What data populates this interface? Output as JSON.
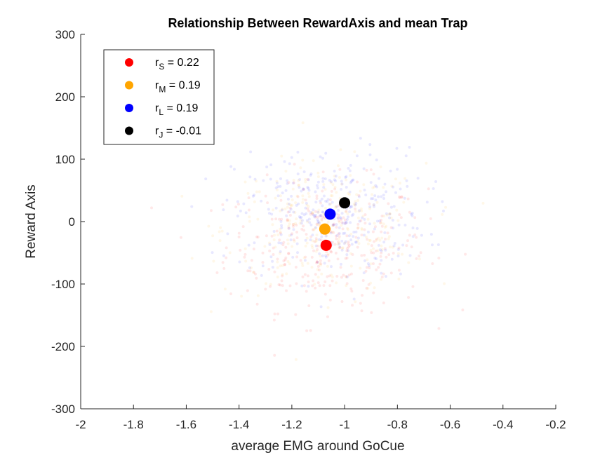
{
  "chart_data": {
    "type": "scatter",
    "title": "Relationship Between RewardAxis and mean Trap",
    "xlabel": "average EMG around GoCue",
    "ylabel": "Reward Axis",
    "xlim": [
      -2,
      -0.2
    ],
    "ylim": [
      -300,
      300
    ],
    "xticks": [
      -2,
      -1.8,
      -1.6,
      -1.4,
      -1.2,
      -1,
      -0.8,
      -0.6,
      -0.4,
      -0.2
    ],
    "yticks": [
      -300,
      -200,
      -100,
      0,
      100,
      200,
      300
    ],
    "xtick_labels": [
      "-2",
      "-1.8",
      "-1.6",
      "-1.4",
      "-1.2",
      "-1",
      "-0.8",
      "-0.6",
      "-0.4",
      "-0.2"
    ],
    "ytick_labels": [
      "-300",
      "-200",
      "-100",
      "0",
      "100",
      "200",
      "300"
    ],
    "grid": false,
    "legend_position": "top-left",
    "series": [
      {
        "key": "S",
        "legend_r": "r",
        "legend_sub": "S",
        "legend_value": " = 0.22",
        "color": "#ff0000",
        "mean": {
          "x": -1.07,
          "y": -38
        },
        "cloud": {
          "n": 320,
          "sx": 0.19,
          "sy": 52,
          "cx": -1.07,
          "cy": -38
        }
      },
      {
        "key": "M",
        "legend_r": "r",
        "legend_sub": "M",
        "legend_value": " = 0.19",
        "color": "#ffa500",
        "mean": {
          "x": -1.075,
          "y": -12
        },
        "cloud": {
          "n": 280,
          "sx": 0.19,
          "sy": 52,
          "cx": -1.075,
          "cy": -12
        }
      },
      {
        "key": "L",
        "legend_r": "r",
        "legend_sub": "L",
        "legend_value": " = 0.19",
        "color": "#0000ff",
        "mean": {
          "x": -1.055,
          "y": 12
        },
        "cloud": {
          "n": 340,
          "sx": 0.18,
          "sy": 52,
          "cx": -1.055,
          "cy": 12
        }
      },
      {
        "key": "J",
        "legend_r": "r",
        "legend_sub": "J",
        "legend_value": " = -0.01",
        "color": "#000000",
        "mean": {
          "x": -1.0,
          "y": 30
        },
        "cloud": {
          "n": 0,
          "sx": 0,
          "sy": 0,
          "cx": -1.0,
          "cy": 30
        }
      }
    ]
  }
}
